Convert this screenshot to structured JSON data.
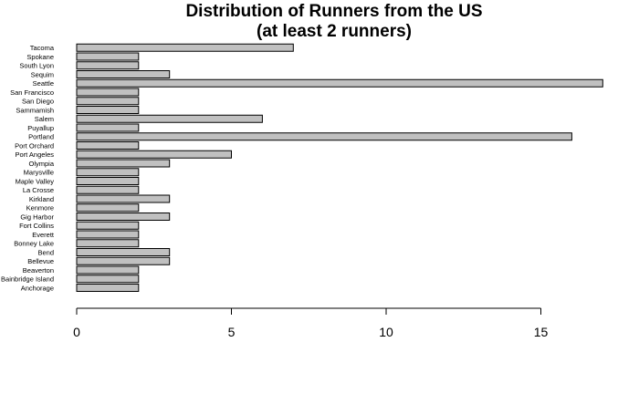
{
  "chart_data": {
    "type": "bar",
    "orientation": "horizontal",
    "title_lines": [
      "Distribution of Runners from the US",
      "(at least 2 runners)"
    ],
    "xlabel": "",
    "ylabel": "",
    "categories": [
      "Anchorage",
      "Bainbridge Island",
      "Beaverton",
      "Bellevue",
      "Bend",
      "Bonney Lake",
      "Everett",
      "Fort Collins",
      "Gig Harbor",
      "Kenmore",
      "Kirkland",
      "La Crosse",
      "Maple Valley",
      "Marysville",
      "Olympia",
      "Port Angeles",
      "Port Orchard",
      "Portland",
      "Puyallup",
      "Salem",
      "Sammamish",
      "San Diego",
      "San Francisco",
      "Seattle",
      "Sequim",
      "South Lyon",
      "Spokane",
      "Tacoma"
    ],
    "values": [
      2,
      2,
      2,
      3,
      3,
      2,
      2,
      2,
      3,
      2,
      3,
      2,
      2,
      2,
      3,
      5,
      2,
      16,
      2,
      6,
      2,
      2,
      2,
      17,
      3,
      2,
      2,
      7
    ],
    "xlim": [
      0,
      17
    ],
    "xticks": [
      "0",
      "5",
      "10",
      "15"
    ],
    "grid": false,
    "legend": "none",
    "bar_fill": "#c0c0c0",
    "bar_stroke": "#000000"
  }
}
